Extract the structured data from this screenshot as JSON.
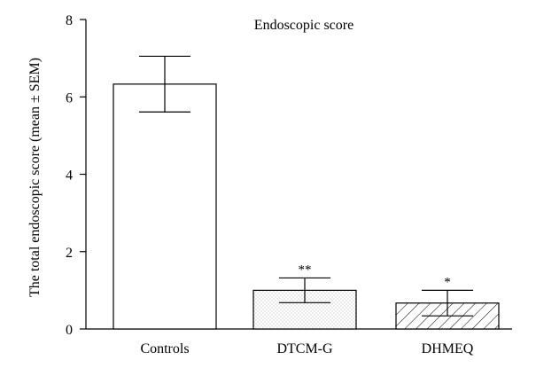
{
  "chart_data": {
    "type": "bar",
    "title": "Endoscopic score",
    "xlabel": "",
    "ylabel": "The total endoscopic score (mean ± SEM)",
    "ylim": [
      0,
      8
    ],
    "yticks": [
      "0",
      "2",
      "4",
      "6",
      "8"
    ],
    "categories": [
      "Controls",
      "DTCM-G",
      "DHMEQ"
    ],
    "values": [
      6.33,
      1.0,
      0.67
    ],
    "errors": [
      0.72,
      0.32,
      0.33
    ],
    "significance": [
      "",
      "**",
      "*"
    ],
    "fills": [
      "plain",
      "dotted",
      "hatched"
    ],
    "grid": false
  }
}
